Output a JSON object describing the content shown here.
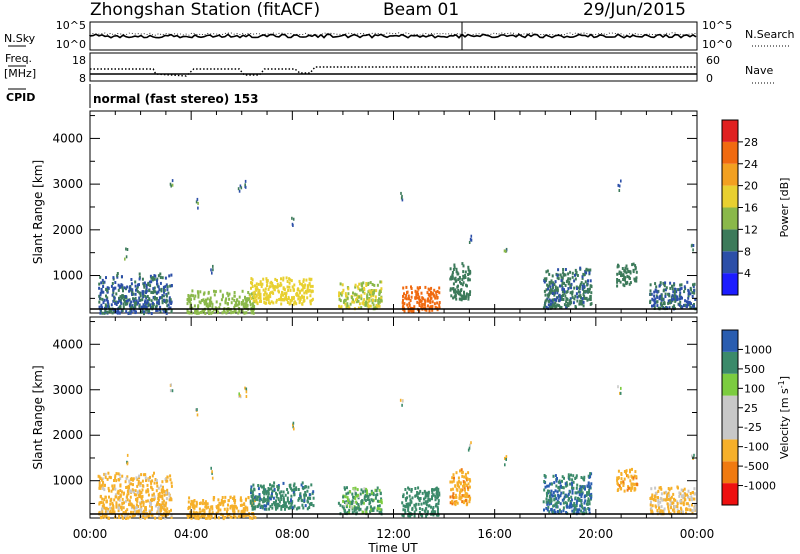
{
  "header": {
    "title": "Zhongshan Station (fitACF)",
    "beam": "Beam 01",
    "date": "29/Jun/2015"
  },
  "panels": {
    "nsky": {
      "label": "N.Sky",
      "ticks": [
        "10^5",
        "10^0"
      ],
      "right_label": "N.Search",
      "right_ticks": [
        "10^5",
        "10^0"
      ]
    },
    "freq": {
      "label_top": "Freq.",
      "label_unit": "[MHz]",
      "ticks": [
        "18",
        "8"
      ],
      "right_label": "Nave",
      "right_ticks": [
        "60",
        "0"
      ]
    },
    "cpid": {
      "label": "CPID",
      "text": "normal (fast stereo) 153"
    }
  },
  "colors": {
    "power_scale": [
      "#1c1cff",
      "#2c4fa8",
      "#3c7a5a",
      "#8ab84a",
      "#e8d030",
      "#f2a020",
      "#f06a10",
      "#e02020"
    ],
    "velocity_scale": [
      "#ee1010",
      "#f07a10",
      "#f6b02a",
      "#c8c8c8",
      "#c8c8c8",
      "#7ccc40",
      "#3b8a6a",
      "#2a5db0"
    ]
  },
  "chart_data": [
    {
      "type": "heatmap",
      "name": "power",
      "xlabel": "Time UT",
      "ylabel": "Slant Range [km]",
      "xticks": [
        "00:00",
        "04:00",
        "08:00",
        "12:00",
        "16:00",
        "20:00",
        "00:00"
      ],
      "xlim_hours": [
        0,
        24
      ],
      "yticks": [
        1000,
        2000,
        3000,
        4000
      ],
      "ylim": [
        180,
        4600
      ],
      "colorbar": {
        "label": "Power [dB]",
        "ticks": [
          4,
          8,
          12,
          16,
          20,
          24,
          28
        ],
        "range": [
          0,
          32
        ]
      },
      "echo_regions": [
        {
          "t": [
            0.3,
            3.2
          ],
          "r": [
            200,
            1100
          ],
          "value": 8
        },
        {
          "t": [
            3.8,
            6.5
          ],
          "r": [
            200,
            700
          ],
          "value": 14
        },
        {
          "t": [
            6.3,
            8.8
          ],
          "r": [
            400,
            1000
          ],
          "value": 18
        },
        {
          "t": [
            9.8,
            11.5
          ],
          "r": [
            300,
            900
          ],
          "value": 16
        },
        {
          "t": [
            12.3,
            13.8
          ],
          "r": [
            250,
            800
          ],
          "value": 26
        },
        {
          "t": [
            14.2,
            15.0
          ],
          "r": [
            500,
            1300
          ],
          "value": 10
        },
        {
          "t": [
            17.9,
            19.8
          ],
          "r": [
            300,
            1200
          ],
          "value": 9
        },
        {
          "t": [
            20.8,
            21.6
          ],
          "r": [
            800,
            1300
          ],
          "value": 10
        },
        {
          "t": [
            22.1,
            23.9
          ],
          "r": [
            300,
            900
          ],
          "value": 8
        }
      ]
    },
    {
      "type": "heatmap",
      "name": "velocity",
      "xlabel": "Time UT",
      "ylabel": "Slant Range [km]",
      "xticks": [
        "00:00",
        "04:00",
        "08:00",
        "12:00",
        "16:00",
        "20:00",
        "00:00"
      ],
      "xlim_hours": [
        0,
        24
      ],
      "yticks": [
        1000,
        2000,
        3000,
        4000
      ],
      "ylim": [
        180,
        4600
      ],
      "colorbar": {
        "label": "Velocity [m s",
        "label_exp": "-1",
        "label_end": "]",
        "ticks": [
          "1000",
          "500",
          "100",
          "25",
          "-25",
          "-100",
          "-500",
          "-1000"
        ]
      },
      "echo_regions": [
        {
          "t": [
            0.3,
            3.2
          ],
          "r": [
            200,
            1200
          ],
          "value": -200
        },
        {
          "t": [
            3.8,
            6.5
          ],
          "r": [
            200,
            700
          ],
          "value": -300
        },
        {
          "t": [
            6.3,
            8.8
          ],
          "r": [
            400,
            1000
          ],
          "value": 400
        },
        {
          "t": [
            9.8,
            11.5
          ],
          "r": [
            300,
            900
          ],
          "value": 150
        },
        {
          "t": [
            12.3,
            13.8
          ],
          "r": [
            250,
            900
          ],
          "value": 300
        },
        {
          "t": [
            14.2,
            15.0
          ],
          "r": [
            500,
            1300
          ],
          "value": -400
        },
        {
          "t": [
            17.9,
            19.8
          ],
          "r": [
            300,
            1200
          ],
          "value": 500
        },
        {
          "t": [
            20.8,
            21.6
          ],
          "r": [
            800,
            1300
          ],
          "value": -400
        },
        {
          "t": [
            22.1,
            23.9
          ],
          "r": [
            300,
            900
          ],
          "value": -150
        }
      ]
    }
  ]
}
